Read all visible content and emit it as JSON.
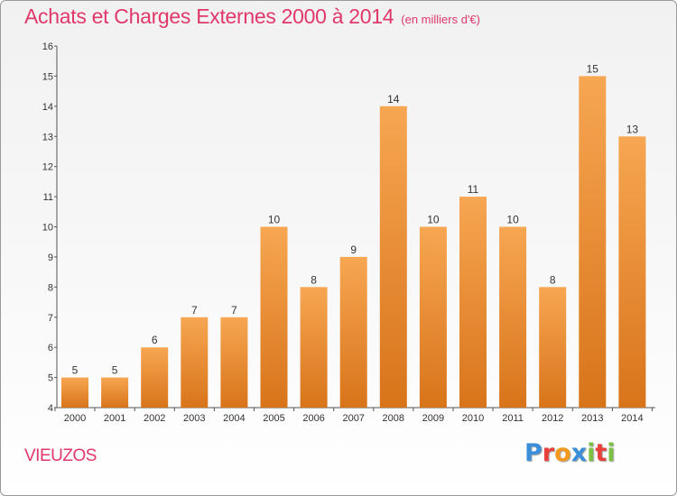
{
  "header": {
    "title": "Achats et Charges Externes 2000 à 2014",
    "subtitle": "(en milliers d'€)"
  },
  "footer": {
    "city": "VIEUZOS",
    "logo_letters": [
      "P",
      "r",
      "o",
      "x",
      "i",
      "t",
      "i"
    ],
    "logo_colors": [
      "#3a8fd8",
      "#e8403a",
      "#f39a1e",
      "#3a8fd8",
      "#7cc142",
      "#e8403a",
      "#7cc142"
    ]
  },
  "chart_data": {
    "type": "bar",
    "title": "Achats et Charges Externes 2000 à 2014",
    "categories": [
      "2000",
      "2001",
      "2002",
      "2003",
      "2004",
      "2005",
      "2006",
      "2007",
      "2008",
      "2009",
      "2010",
      "2011",
      "2012",
      "2013",
      "2014"
    ],
    "values": [
      5,
      5,
      6,
      7,
      7,
      10,
      8,
      9,
      14,
      10,
      11,
      10,
      8,
      15,
      13
    ],
    "ylim": [
      4,
      16
    ],
    "yticks": [
      4,
      5,
      6,
      7,
      8,
      9,
      10,
      11,
      12,
      13,
      14,
      15,
      16
    ],
    "grid": false,
    "bar_color_light": "#f7a652",
    "bar_color_dark": "#d8741a"
  }
}
